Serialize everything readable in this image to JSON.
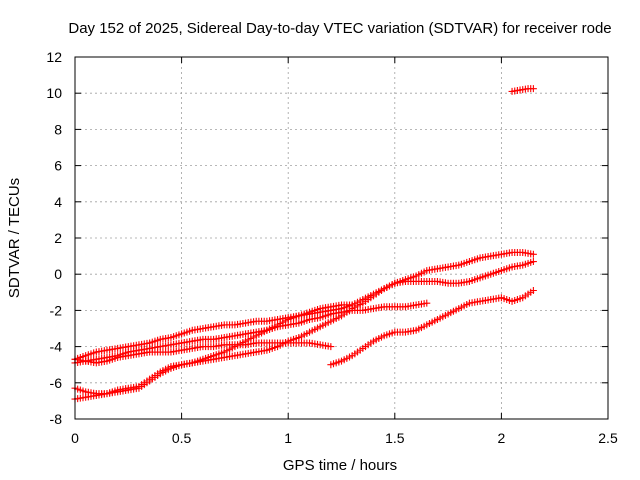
{
  "chart_data": {
    "type": "scatter",
    "title": "Day 152 of 2025, Sidereal Day-to-day VTEC variation (SDTVAR) for receiver rode",
    "xlabel": "GPS time / hours",
    "ylabel": "SDTVAR / TECUs",
    "xlim": [
      0,
      2.5
    ],
    "ylim": [
      -8,
      12
    ],
    "xticks": [
      "0",
      "0.5",
      "1",
      "1.5",
      "2",
      "2.5"
    ],
    "yticks": [
      "-8",
      "-6",
      "-4",
      "-2",
      "0",
      "2",
      "4",
      "6",
      "8",
      "10",
      "12"
    ],
    "grid": true,
    "marker": "+",
    "series_color": "#ff0000",
    "series": [
      {
        "x": [
          0.0,
          0.05,
          0.1,
          0.15,
          0.2,
          0.25,
          0.3,
          0.35,
          0.4,
          0.45,
          0.5,
          0.55,
          0.6,
          0.65,
          0.7,
          0.75,
          0.8,
          0.85,
          0.9,
          0.95,
          1.0,
          1.05,
          1.1,
          1.15,
          1.2,
          1.25,
          1.3,
          1.35,
          1.4,
          1.45,
          1.5,
          1.55,
          1.6,
          1.65
        ],
        "y": [
          -4.9,
          -4.8,
          -4.7,
          -4.6,
          -4.5,
          -4.3,
          -4.2,
          -4.1,
          -4.0,
          -3.9,
          -3.8,
          -3.7,
          -3.6,
          -3.6,
          -3.5,
          -3.4,
          -3.3,
          -3.2,
          -3.1,
          -2.9,
          -2.8,
          -2.7,
          -2.5,
          -2.4,
          -2.2,
          -2.1,
          -2.0,
          -2.0,
          -1.9,
          -1.8,
          -1.8,
          -1.8,
          -1.7,
          -1.6
        ]
      },
      {
        "x": [
          0.0,
          0.05,
          0.1,
          0.15,
          0.2,
          0.25,
          0.3,
          0.35,
          0.4,
          0.45,
          0.5,
          0.55,
          0.6,
          0.65,
          0.7,
          0.75,
          0.8,
          0.85,
          0.9,
          0.95,
          1.0,
          1.05,
          1.1,
          1.15,
          1.2,
          1.25,
          1.3,
          1.35,
          1.4,
          1.45,
          1.5,
          1.55,
          1.6,
          1.65,
          1.7,
          1.75,
          1.8,
          1.85,
          1.9,
          1.95,
          2.0,
          2.05,
          2.1,
          2.15
        ],
        "y": [
          -4.7,
          -4.5,
          -4.3,
          -4.2,
          -4.1,
          -4.0,
          -3.9,
          -3.8,
          -3.6,
          -3.5,
          -3.3,
          -3.1,
          -3.0,
          -2.9,
          -2.8,
          -2.8,
          -2.7,
          -2.6,
          -2.6,
          -2.5,
          -2.4,
          -2.3,
          -2.2,
          -2.1,
          -2.0,
          -1.9,
          -1.7,
          -1.4,
          -1.1,
          -0.8,
          -0.5,
          -0.4,
          -0.4,
          -0.4,
          -0.4,
          -0.5,
          -0.5,
          -0.4,
          -0.2,
          0.0,
          0.2,
          0.4,
          0.5,
          0.7
        ]
      },
      {
        "x": [
          0.0,
          0.05,
          0.1,
          0.15,
          0.2,
          0.25,
          0.3,
          0.35,
          0.4,
          0.45,
          0.5,
          0.55,
          0.6,
          0.65,
          0.7,
          0.75,
          0.8,
          0.85,
          0.9,
          0.95,
          1.0,
          1.05,
          1.1,
          1.15,
          1.2
        ],
        "y": [
          -4.7,
          -4.8,
          -4.9,
          -4.8,
          -4.6,
          -4.5,
          -4.4,
          -4.3,
          -4.3,
          -4.3,
          -4.2,
          -4.1,
          -4.0,
          -4.0,
          -3.9,
          -3.9,
          -3.9,
          -3.8,
          -3.8,
          -3.8,
          -3.8,
          -3.8,
          -3.8,
          -3.9,
          -4.0
        ]
      },
      {
        "x": [
          0.0,
          0.05,
          0.1,
          0.15,
          0.2,
          0.25,
          0.3,
          0.35,
          0.4,
          0.45,
          0.5,
          0.55,
          0.6,
          0.65,
          0.7,
          0.75,
          0.8,
          0.85,
          0.9,
          0.95,
          1.0,
          1.05,
          1.1,
          1.15,
          1.2,
          1.25,
          1.3,
          1.35,
          1.4,
          1.45,
          1.5,
          1.55,
          1.6,
          1.65,
          1.7,
          1.75,
          1.8,
          1.85,
          1.9,
          1.95,
          2.0,
          2.05,
          2.1,
          2.15
        ],
        "y": [
          -6.3,
          -6.5,
          -6.6,
          -6.6,
          -6.5,
          -6.4,
          -6.3,
          -5.9,
          -5.5,
          -5.2,
          -5.0,
          -4.9,
          -4.8,
          -4.7,
          -4.6,
          -4.5,
          -4.4,
          -4.3,
          -4.2,
          -4.0,
          -3.7,
          -3.5,
          -3.2,
          -2.9,
          -2.6,
          -2.3,
          -1.9,
          -1.6,
          -1.2,
          -0.8,
          -0.5,
          -0.3,
          -0.1,
          0.2,
          0.3,
          0.4,
          0.5,
          0.7,
          0.9,
          1.0,
          1.1,
          1.2,
          1.2,
          1.1
        ]
      },
      {
        "x": [
          0.0,
          0.05,
          0.1,
          0.15,
          0.2,
          0.25,
          0.3,
          0.35,
          0.4,
          0.45,
          0.5,
          0.55,
          0.6,
          0.65,
          0.7,
          0.75,
          0.8,
          0.85,
          0.9,
          0.95,
          1.0,
          1.05,
          1.1,
          1.15,
          1.2,
          1.25,
          1.3
        ],
        "y": [
          -6.9,
          -6.8,
          -6.7,
          -6.6,
          -6.4,
          -6.3,
          -6.2,
          -5.8,
          -5.4,
          -5.1,
          -5.0,
          -4.9,
          -4.7,
          -4.5,
          -4.3,
          -4.0,
          -3.7,
          -3.4,
          -3.1,
          -2.8,
          -2.5,
          -2.3,
          -2.1,
          -1.9,
          -1.8,
          -1.7,
          -1.7
        ]
      },
      {
        "x": [
          1.2,
          1.25,
          1.3,
          1.35,
          1.4,
          1.45,
          1.5,
          1.55,
          1.6,
          1.65,
          1.7,
          1.75,
          1.8,
          1.85,
          1.9,
          1.95,
          2.0,
          2.05,
          2.1,
          2.15
        ],
        "y": [
          -5.0,
          -4.8,
          -4.5,
          -4.1,
          -3.7,
          -3.4,
          -3.2,
          -3.2,
          -3.1,
          -2.8,
          -2.5,
          -2.2,
          -1.9,
          -1.6,
          -1.5,
          -1.4,
          -1.3,
          -1.5,
          -1.3,
          -0.9
        ]
      },
      {
        "x": [
          2.05,
          2.075,
          2.1,
          2.125,
          2.15
        ],
        "y": [
          10.1,
          10.15,
          10.2,
          10.25,
          10.25
        ]
      }
    ]
  }
}
